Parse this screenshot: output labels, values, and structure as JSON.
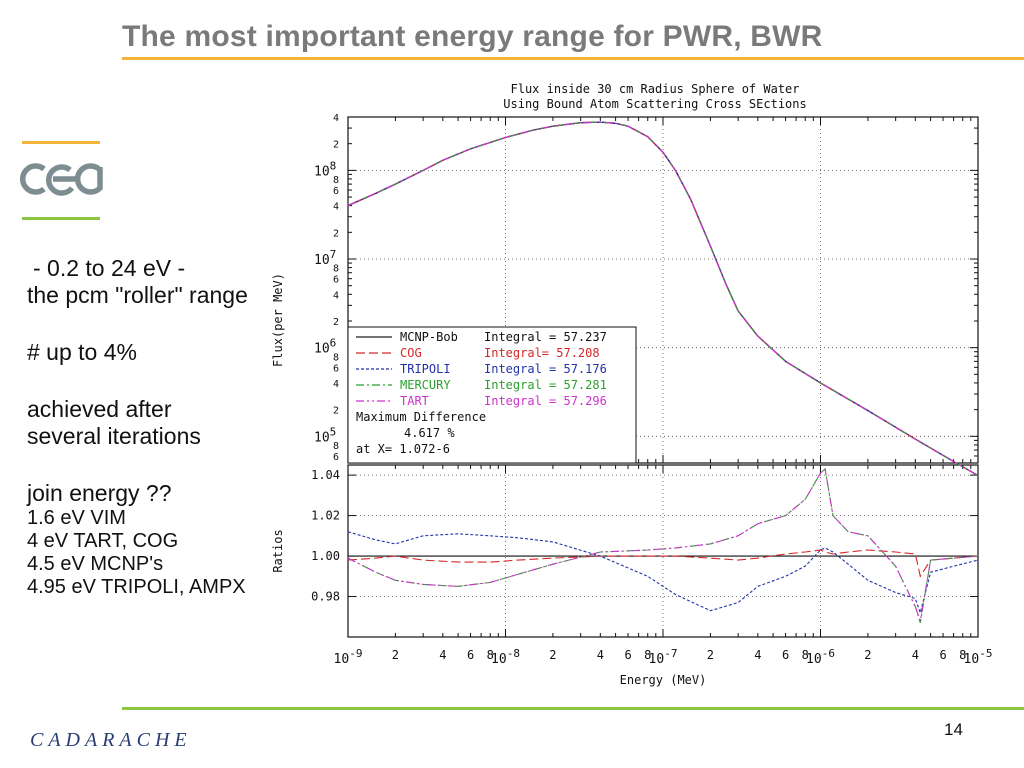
{
  "slide": {
    "title": "The most important energy range for PWR, BWR",
    "page_number": "14",
    "footer_logo": "CADARACHE",
    "logo_text": "cea",
    "bullets": {
      "range": " - 0.2 to 24 eV -",
      "roller": "the pcm \"roller\" range",
      "upto": "# up to 4%",
      "achieved1": "achieved after",
      "achieved2": "several iterations",
      "join": "join energy ??",
      "vim": "1.6 eV VIM",
      "tart": "4 eV TART, COG",
      "mcnp": "4.5 eV MCNP's",
      "tripoli": "4.95 eV TRIPOLI, AMPX"
    },
    "colors": {
      "title": "#7a7a7a",
      "accent_orange": "#f2b53a",
      "accent_green": "#8dc63f",
      "logo_blue": "#2a3d75"
    }
  },
  "chart_data": [
    {
      "type": "line",
      "title": "Flux inside 30 cm Radius Sphere of Water",
      "subtitle": "Using Bound Atom Scattering Cross SEctions",
      "xlabel": "",
      "ylabel": "Flux(per MeV)",
      "xscale": "log",
      "yscale": "log",
      "xlim": [
        1e-09,
        1e-05
      ],
      "ylim": [
        50000,
        400000000
      ],
      "y_ticks": [
        "4",
        "2",
        "10^8",
        "8",
        "6",
        "4",
        "2",
        "10^7",
        "8",
        "6",
        "4",
        "2",
        "10^6",
        "8",
        "6",
        "4",
        "2",
        "10^5",
        "8",
        "6"
      ],
      "grid": true,
      "x": [
        1e-09,
        1.5e-09,
        2e-09,
        3e-09,
        4e-09,
        6e-09,
        1e-08,
        1.5e-08,
        2e-08,
        3e-08,
        4e-08,
        5e-08,
        6e-08,
        8e-08,
        1e-07,
        1.2e-07,
        1.5e-07,
        2e-07,
        2.5e-07,
        3e-07,
        4e-07,
        6e-07,
        1e-06,
        2e-06,
        4e-06,
        7e-06,
        1e-05
      ],
      "series": [
        {
          "name": "MCNP-Bob",
          "integral_label": "Integral = 57.237",
          "color": "#222222",
          "dash": "",
          "values": [
            40000000,
            55000000,
            70000000,
            100000000,
            130000000,
            175000000,
            235000000,
            285000000,
            315000000,
            345000000,
            350000000,
            340000000,
            315000000,
            240000000,
            160000000,
            100000000,
            47000000,
            14000000,
            5300000,
            2600000,
            1350000,
            700000,
            400000,
            195000,
            93000,
            52000,
            36000
          ]
        },
        {
          "name": "COG",
          "integral_label": "Integral=  57.208",
          "color": "#d62728",
          "dash": "9,4",
          "values": [
            40000000,
            55000000,
            70000000,
            100000000,
            130000000,
            175000000,
            235000000,
            285000000,
            315000000,
            345000000,
            350000000,
            340000000,
            315000000,
            240000000,
            160000000,
            100000000,
            47000000,
            14000000,
            5300000,
            2600000,
            1350000,
            700000,
            400000,
            195000,
            93000,
            52000,
            36000
          ]
        },
        {
          "name": "TRIPOLI",
          "integral_label": "Integral = 57.176",
          "color": "#2233aa",
          "dash": "3,2",
          "values": [
            40000000,
            55000000,
            70000000,
            100000000,
            130000000,
            175000000,
            235000000,
            285000000,
            315000000,
            345000000,
            350000000,
            340000000,
            315000000,
            240000000,
            160000000,
            100000000,
            47000000,
            14000000,
            5300000,
            2600000,
            1350000,
            700000,
            400000,
            195000,
            93000,
            52000,
            36000
          ]
        },
        {
          "name": "MERCURY",
          "integral_label": "Integral = 57.281",
          "color": "#2ca02c",
          "dash": "8,3,2,3",
          "values": [
            40000000,
            55000000,
            70000000,
            100000000,
            130000000,
            175000000,
            235000000,
            285000000,
            315000000,
            345000000,
            350000000,
            340000000,
            315000000,
            240000000,
            160000000,
            100000000,
            47000000,
            14000000,
            5300000,
            2600000,
            1350000,
            700000,
            400000,
            195000,
            93000,
            52000,
            36000
          ]
        },
        {
          "name": "TART",
          "integral_label": "Integral = 57.296",
          "color": "#cc33cc",
          "dash": "8,3,2,3,2,3",
          "values": [
            40000000,
            55000000,
            70000000,
            100000000,
            130000000,
            175000000,
            235000000,
            285000000,
            315000000,
            345000000,
            350000000,
            340000000,
            315000000,
            240000000,
            160000000,
            100000000,
            47000000,
            14000000,
            5300000,
            2600000,
            1350000,
            700000,
            400000,
            195000,
            93000,
            52000,
            36000
          ]
        }
      ],
      "annotation": [
        "Maximum Difference",
        "4.617 %",
        "at X= 1.072-6"
      ]
    },
    {
      "type": "line",
      "title": "",
      "xlabel": "Energy (MeV)",
      "ylabel": "Ratios",
      "xscale": "log",
      "xlim": [
        1e-09,
        1e-05
      ],
      "ylim": [
        0.96,
        1.045
      ],
      "y_tick_labels": [
        "1.04",
        "1.02",
        "1.00",
        "0.98"
      ],
      "x_tick_labels": [
        "10^-9",
        "2",
        "4",
        "6",
        "8",
        "10^-8",
        "2",
        "4",
        "6",
        "8",
        "10^-7",
        "2",
        "4",
        "6",
        "8",
        "10^-6",
        "2",
        "4",
        "6",
        "8",
        "10^-5"
      ],
      "reference_line": 1.0,
      "grid": true,
      "x": [
        1e-09,
        1.5e-09,
        2e-09,
        3e-09,
        5e-09,
        8e-09,
        1.2e-08,
        2e-08,
        4e-08,
        8e-08,
        1.2e-07,
        2e-07,
        3e-07,
        4e-07,
        6e-07,
        8e-07,
        1e-06,
        1.07e-06,
        1.2e-06,
        1.5e-06,
        2e-06,
        3e-06,
        4e-06,
        4.3e-06,
        5e-06,
        7e-06,
        1e-05
      ],
      "series": [
        {
          "name": "COG",
          "color": "#d62728",
          "dash": "9,4",
          "values": [
            0.998,
            0.999,
            1.0,
            0.998,
            0.997,
            0.997,
            0.998,
            0.999,
            1.0,
            1.0,
            1.0,
            0.999,
            0.998,
            0.999,
            1.001,
            1.002,
            1.003,
            1.002,
            1.001,
            1.002,
            1.003,
            1.002,
            1.001,
            0.99,
            0.998,
            0.999,
            1.0
          ]
        },
        {
          "name": "TRIPOLI",
          "color": "#2233aa",
          "dash": "3,2",
          "values": [
            1.012,
            1.008,
            1.006,
            1.01,
            1.011,
            1.01,
            1.009,
            1.007,
            1.0,
            0.99,
            0.981,
            0.973,
            0.977,
            0.985,
            0.99,
            0.995,
            1.003,
            1.004,
            1.002,
            0.996,
            0.988,
            0.982,
            0.979,
            0.972,
            0.992,
            0.995,
            0.998
          ]
        },
        {
          "name": "MERCURY",
          "color": "#2ca02c",
          "dash": "8,3,2,3",
          "values": [
            0.999,
            0.992,
            0.988,
            0.986,
            0.985,
            0.987,
            0.991,
            0.996,
            1.002,
            1.003,
            1.004,
            1.006,
            1.01,
            1.016,
            1.02,
            1.028,
            1.041,
            1.043,
            1.02,
            1.012,
            1.01,
            0.995,
            0.975,
            0.967,
            0.998,
            0.999,
            1.0
          ]
        },
        {
          "name": "TART",
          "color": "#cc33cc",
          "dash": "8,3,2,3,2,3",
          "values": [
            0.999,
            0.992,
            0.988,
            0.986,
            0.985,
            0.987,
            0.991,
            0.996,
            1.002,
            1.003,
            1.004,
            1.006,
            1.01,
            1.016,
            1.02,
            1.028,
            1.041,
            1.043,
            1.02,
            1.012,
            1.01,
            0.995,
            0.975,
            0.968,
            0.998,
            0.999,
            1.0
          ]
        }
      ]
    }
  ]
}
